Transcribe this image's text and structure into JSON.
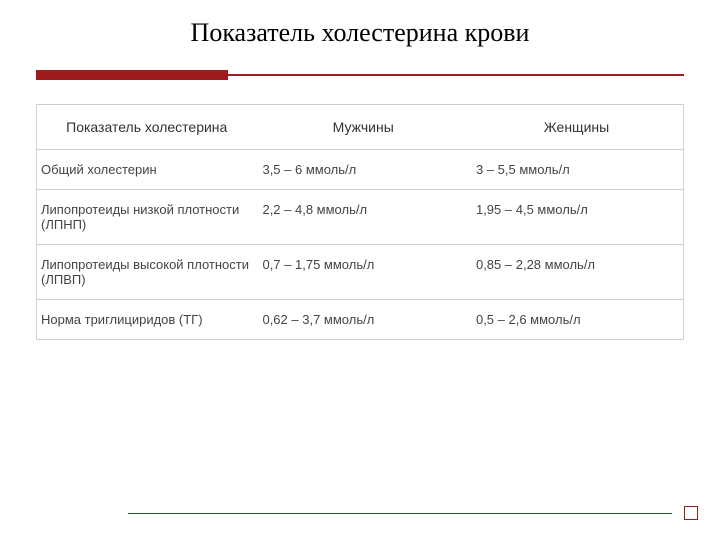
{
  "title": "Показатель холестерина крови",
  "accent_color": "#9e1b1b",
  "table": {
    "columns": [
      "Показатель холестерина",
      "Мужчины",
      "Женщины"
    ],
    "column_align": [
      "left",
      "left",
      "left"
    ],
    "header_align": "center",
    "header_fontsize": 14,
    "body_fontsize": 13,
    "border_color": "#cfcfcf",
    "rows": [
      [
        "Общий холестерин",
        "3,5 – 6 ммоль/л",
        "3 – 5,5 ммоль/л"
      ],
      [
        "Липопротеиды низкой плотности (ЛПНП)",
        "2,2 – 4,8 ммоль/л",
        "1,95 – 4,5 ммоль/л"
      ],
      [
        "Липопротеиды высокой плотности (ЛПВП)",
        "0,7 – 1,75 ммоль/л",
        "0,85 – 2,28 ммоль/л"
      ],
      [
        "Норма триглициридов (ТГ)",
        "0,62 – 3,7 ммоль/л",
        "0,5 – 2,6 ммоль/л"
      ]
    ]
  }
}
